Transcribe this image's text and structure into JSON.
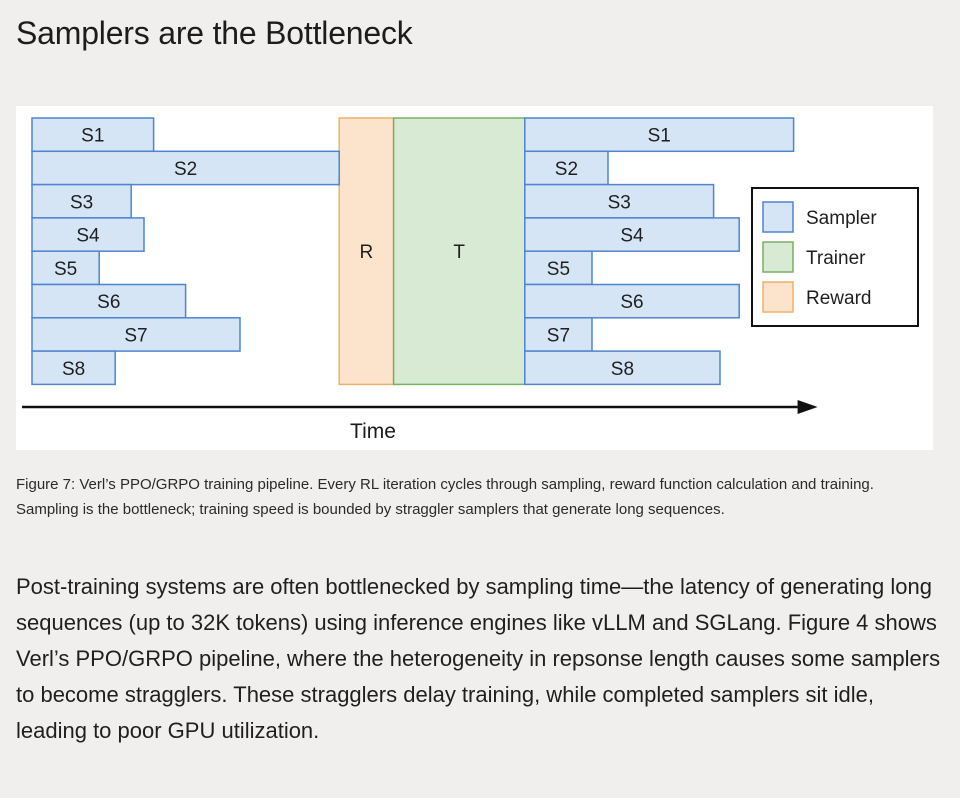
{
  "page": {
    "heading": "Samplers are the Bottleneck",
    "caption": "Figure 7: Verl’s PPO/GRPO training pipeline. Every RL iteration cycles through sampling, reward function calculation and training. Sampling is the bottleneck; training speed is bounded by straggler samplers that generate long sequences.",
    "paragraph": "Post-training systems are often bottlenecked by sampling time—the latency of generating long sequences (up to 32K tokens) using inference engines like vLLM and SGLang. Figure 4 shows Verl’s PPO/GRPO pipeline, where the heterogeneity in repsonse length causes some samplers to become stragglers. These stragglers delay training, while completed samplers sit idle, leading to poor GPU utilization."
  },
  "colors": {
    "page_background": "#f0efed",
    "sampler_fill": "#d6e5f6",
    "sampler_stroke": "#4f84cf",
    "trainer_fill": "#d8ead3",
    "trainer_stroke": "#78b063",
    "reward_fill": "#fbe3cc",
    "reward_stroke": "#f0b06b"
  },
  "chart_data": {
    "type": "gantt",
    "xlabel": "Time",
    "legend": {
      "position": "right",
      "entries": [
        {
          "label": "Sampler",
          "kind": "sampler"
        },
        {
          "label": "Trainer",
          "kind": "trainer"
        },
        {
          "label": "Reward",
          "kind": "reward"
        }
      ]
    },
    "phases": [
      {
        "label": "R",
        "kind": "reward",
        "start": 10.1,
        "end": 11.8
      },
      {
        "label": "T",
        "kind": "trainer",
        "start": 11.8,
        "end": 15.9
      }
    ],
    "rows": [
      "S1",
      "S2",
      "S3",
      "S4",
      "S5",
      "S6",
      "S7",
      "S8"
    ],
    "iterations": [
      {
        "samplers": [
          {
            "label": "S1",
            "start": 0.5,
            "end": 4.3
          },
          {
            "label": "S2",
            "start": 0.5,
            "end": 10.1
          },
          {
            "label": "S3",
            "start": 0.5,
            "end": 3.6
          },
          {
            "label": "S4",
            "start": 0.5,
            "end": 4.0
          },
          {
            "label": "S5",
            "start": 0.5,
            "end": 2.6
          },
          {
            "label": "S6",
            "start": 0.5,
            "end": 5.3
          },
          {
            "label": "S7",
            "start": 0.5,
            "end": 7.0
          },
          {
            "label": "S8",
            "start": 0.5,
            "end": 3.1
          }
        ]
      },
      {
        "samplers": [
          {
            "label": "S1",
            "start": 15.9,
            "end": 24.3
          },
          {
            "label": "S2",
            "start": 15.9,
            "end": 18.5
          },
          {
            "label": "S3",
            "start": 15.9,
            "end": 21.8
          },
          {
            "label": "S4",
            "start": 15.9,
            "end": 22.6
          },
          {
            "label": "S5",
            "start": 15.9,
            "end": 18.0
          },
          {
            "label": "S6",
            "start": 15.9,
            "end": 22.6
          },
          {
            "label": "S7",
            "start": 15.9,
            "end": 18.0
          },
          {
            "label": "S8",
            "start": 15.9,
            "end": 22.0
          }
        ]
      }
    ],
    "xlim": [
      0,
      24.8
    ]
  }
}
